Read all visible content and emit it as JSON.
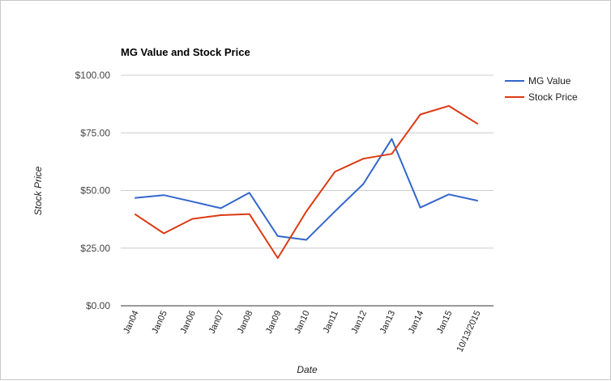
{
  "chart_data": {
    "type": "line",
    "title": "MG Value and Stock Price",
    "xlabel": "Date",
    "ylabel": "Stock Price",
    "categories": [
      "Jan04",
      "Jan05",
      "Jan06",
      "Jan07",
      "Jan08",
      "Jan09",
      "Jan10",
      "Jan11",
      "Jan12",
      "Jan13",
      "Jan14",
      "Jan15",
      "10/13/2015"
    ],
    "ylim": [
      0,
      100
    ],
    "yticks": [
      "$0.00",
      "$25.00",
      "$50.00",
      "$75.00",
      "$100.00"
    ],
    "ytick_values": [
      0,
      25,
      50,
      75,
      100
    ],
    "grid": true,
    "legend_position": "right",
    "series": [
      {
        "name": "MG Value",
        "color": "#3366cc",
        "values": [
          46.8,
          48.0,
          45.2,
          42.3,
          49.0,
          30.2,
          28.6,
          40.9,
          52.8,
          72.4,
          42.6,
          48.3,
          45.6
        ]
      },
      {
        "name": "Stock Price",
        "color": "#dc3912",
        "values": [
          39.6,
          31.4,
          37.7,
          39.3,
          39.8,
          20.7,
          40.9,
          58.1,
          63.8,
          65.9,
          83.0,
          86.7,
          79.0
        ]
      }
    ]
  }
}
